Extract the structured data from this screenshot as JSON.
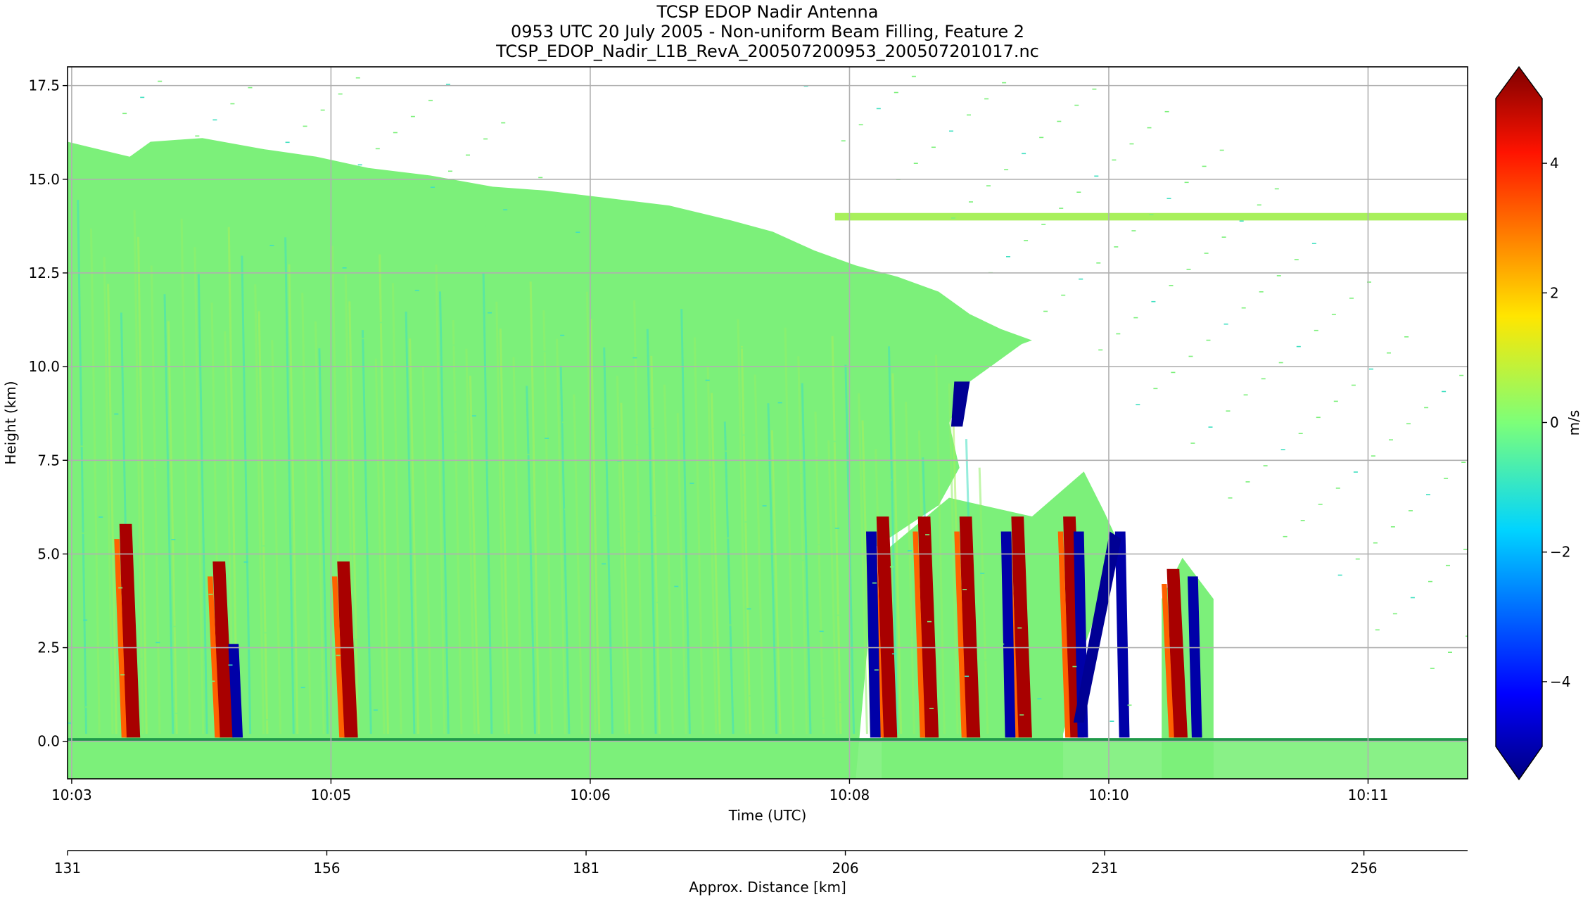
{
  "chart_data": {
    "type": "heatmap",
    "title_lines": [
      "TCSP EDOP Nadir Antenna",
      "0953 UTC 20 July 2005 - Non-uniform Beam Filling, Feature 2",
      "TCSP_EDOP_Nadir_L1B_RevA_200507200953_200507201017.nc"
    ],
    "xlabel": "Time (UTC)",
    "ylabel": "Height (km)",
    "x2label": "Approx. Distance [km]",
    "colorbar_label": "m/s",
    "x_time_ticks": [
      "10:03",
      "10:05",
      "10:06",
      "10:08",
      "10:10",
      "10:11"
    ],
    "x_time_tick_positions_km": [
      131.4,
      156.4,
      181.4,
      206.4,
      231.4,
      256.4
    ],
    "x_distance_ticks": [
      131,
      156,
      181,
      206,
      231,
      256
    ],
    "x_range_km": [
      131,
      266
    ],
    "ylim": [
      -1.0,
      18.0
    ],
    "y_ticks": [
      0.0,
      2.5,
      5.0,
      7.5,
      10.0,
      12.5,
      15.0,
      17.5
    ],
    "y_tick_labels": [
      "0.0",
      "2.5",
      "5.0",
      "7.5",
      "10.0",
      "12.5",
      "15.0",
      "17.5"
    ],
    "colorbar_range": [
      -5,
      5
    ],
    "colorbar_ticks": [
      4,
      2,
      0,
      -2,
      -4
    ],
    "colorbar_tick_labels": [
      "4",
      "2",
      "0",
      "−2",
      "−4"
    ],
    "colormap": "jet",
    "colorbar_extend": "both",
    "grid": true,
    "features": {
      "cloud_top_profile_km": [
        [
          131,
          16.0
        ],
        [
          137,
          15.6
        ],
        [
          139,
          16.0
        ],
        [
          144,
          16.1
        ],
        [
          150,
          15.8
        ],
        [
          155,
          15.6
        ],
        [
          160,
          15.3
        ],
        [
          166,
          15.1
        ],
        [
          172,
          14.8
        ],
        [
          177,
          14.7
        ],
        [
          183,
          14.5
        ],
        [
          189,
          14.3
        ],
        [
          195,
          13.9
        ],
        [
          199,
          13.6
        ],
        [
          203,
          13.1
        ],
        [
          207,
          12.7
        ],
        [
          211,
          12.4
        ],
        [
          215,
          12.0
        ],
        [
          218,
          11.4
        ],
        [
          221,
          11.0
        ],
        [
          224,
          10.7
        ]
      ],
      "thin_layer_km": {
        "x_start": 205,
        "x_end": 266,
        "height": 14.0
      },
      "main_echo_region_km": {
        "x_start": 131,
        "x_end": 221
      },
      "convective_cell_1_km": {
        "x_start": 209.5,
        "x_end": 232.5,
        "top": 6.5
      },
      "convective_cell_2_km": {
        "x_start": 236.5,
        "x_end": 241.5,
        "top": 4.9
      },
      "strong_updrafts_km": [
        136,
        145,
        157,
        209,
        213,
        217,
        222,
        227,
        237
      ],
      "strong_downdrafts_km": [
        146.5,
        208,
        221,
        228,
        232,
        239
      ],
      "surface_height": 0.0
    }
  },
  "colors": {
    "frame": "#000000",
    "grid": "#b0b0b0",
    "background": "#ffffff",
    "echo_base": "#7cf07a",
    "echo_light": "#a8f05c",
    "echo_cyan": "#40e0c0"
  }
}
